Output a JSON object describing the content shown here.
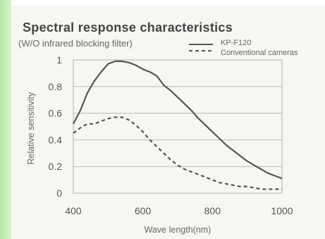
{
  "chart_data": {
    "type": "line",
    "title": "Spectral response characteristics",
    "subtitle": "(W/O infrared blocking filter)",
    "xlabel": "Wave length(nm)",
    "ylabel": "Relative sensitivity",
    "xlim": [
      400,
      1000
    ],
    "ylim": [
      0,
      1
    ],
    "xticks": [
      "400",
      "600",
      "800",
      "1000"
    ],
    "yticks": [
      "0",
      "0.2",
      "0.4",
      "0.6",
      "0.8",
      "1"
    ],
    "grid": true,
    "legend_position": "top-right",
    "series": [
      {
        "name": "KP-F120",
        "style": "solid",
        "color": "#555555",
        "x": [
          400,
          420,
          440,
          460,
          480,
          500,
          520,
          540,
          560,
          580,
          600,
          620,
          640,
          660,
          680,
          700,
          720,
          740,
          760,
          780,
          800,
          820,
          840,
          860,
          880,
          900,
          920,
          940,
          960,
          980,
          1000
        ],
        "y": [
          0.52,
          0.62,
          0.75,
          0.84,
          0.91,
          0.97,
          0.99,
          0.99,
          0.98,
          0.96,
          0.93,
          0.91,
          0.88,
          0.81,
          0.77,
          0.72,
          0.67,
          0.62,
          0.56,
          0.51,
          0.46,
          0.41,
          0.36,
          0.32,
          0.28,
          0.24,
          0.21,
          0.18,
          0.15,
          0.13,
          0.11
        ]
      },
      {
        "name": "Conventional cameras",
        "style": "dashed",
        "color": "#555555",
        "x": [
          400,
          420,
          440,
          460,
          480,
          500,
          520,
          540,
          560,
          580,
          600,
          620,
          640,
          660,
          680,
          700,
          720,
          740,
          760,
          780,
          800,
          820,
          840,
          860,
          880,
          900,
          920,
          940,
          960,
          980,
          1000
        ],
        "y": [
          0.45,
          0.49,
          0.52,
          0.52,
          0.54,
          0.56,
          0.57,
          0.57,
          0.55,
          0.51,
          0.46,
          0.4,
          0.35,
          0.3,
          0.25,
          0.21,
          0.18,
          0.16,
          0.14,
          0.12,
          0.1,
          0.08,
          0.07,
          0.06,
          0.05,
          0.05,
          0.04,
          0.03,
          0.03,
          0.03,
          0.03
        ]
      }
    ]
  }
}
